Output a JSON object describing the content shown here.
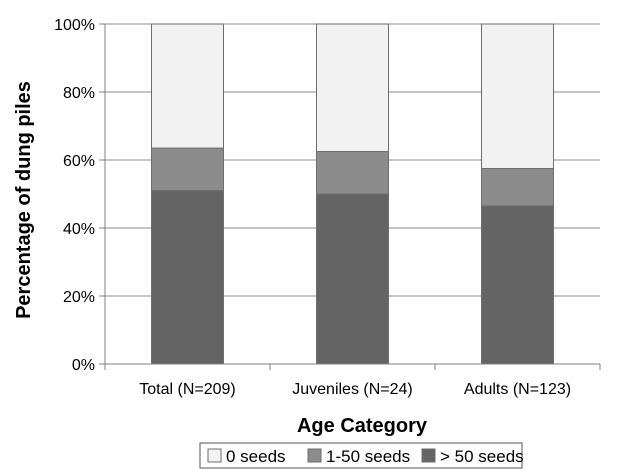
{
  "chart_data": {
    "type": "bar",
    "stacked": true,
    "title": "",
    "xlabel": "Age Category",
    "ylabel": "Percentage of dung piles",
    "ylim": [
      0,
      100
    ],
    "yticks": [
      "0%",
      "20%",
      "40%",
      "60%",
      "80%",
      "100%"
    ],
    "grid": true,
    "legend_position": "bottom",
    "categories": [
      "Total (N=209)",
      "Juveniles (N=24)",
      "Adults (N=123)"
    ],
    "series": [
      {
        "name": "> 50 seeds",
        "values": [
          51,
          50,
          46.5
        ],
        "color": "#646464"
      },
      {
        "name": "1-50 seeds",
        "values": [
          12.5,
          12.5,
          11
        ],
        "color": "#8c8c8c"
      },
      {
        "name": "0 seeds",
        "values": [
          36.5,
          37.5,
          42.5
        ],
        "color": "#f2f2f2"
      }
    ],
    "legend_order": [
      "0 seeds",
      "1-50 seeds",
      "> 50 seeds"
    ]
  }
}
